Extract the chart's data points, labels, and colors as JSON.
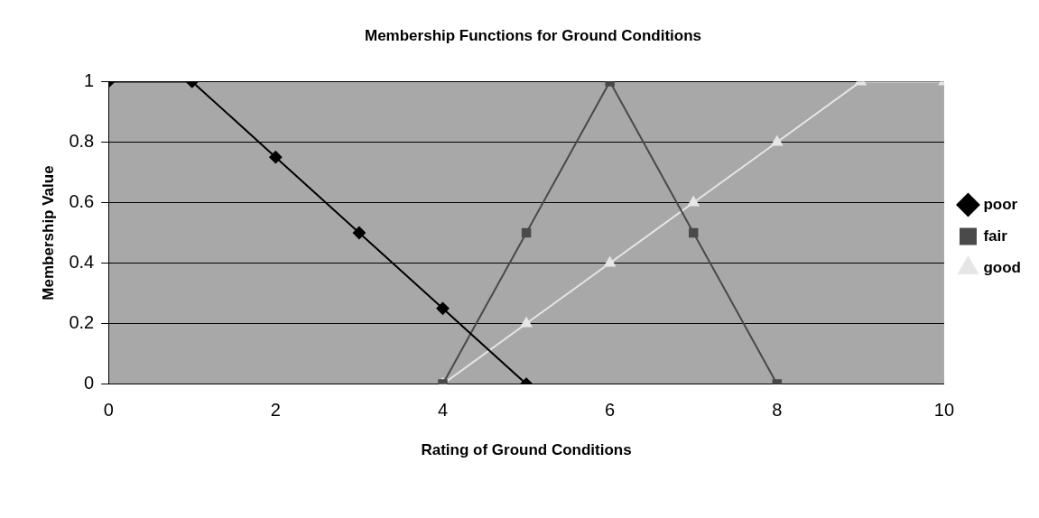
{
  "chart_data": {
    "type": "line",
    "title": "Membership Functions for Ground Conditions",
    "xlabel": "Rating of Ground Conditions",
    "ylabel": "Membership Value",
    "series": [
      {
        "name": "poor",
        "color": "#000000",
        "marker": "diamond",
        "x": [
          0,
          1,
          2,
          3,
          4,
          5
        ],
        "values": [
          1,
          1,
          0.75,
          0.5,
          0.25,
          0
        ]
      },
      {
        "name": "fair",
        "color": "#4a4a4a",
        "marker": "square",
        "x": [
          4,
          5,
          6,
          7,
          8
        ],
        "values": [
          0,
          0.5,
          1,
          0.5,
          0
        ]
      },
      {
        "name": "good",
        "color": "#e6e6e6",
        "marker": "triangle",
        "x": [
          4,
          5,
          6,
          7,
          8,
          9,
          10
        ],
        "values": [
          0,
          0.2,
          0.4,
          0.6,
          0.8,
          1,
          1
        ]
      }
    ],
    "xlim": [
      0,
      10
    ],
    "xticks": [
      0,
      2,
      4,
      6,
      8,
      10
    ],
    "ylim": [
      0,
      1
    ],
    "yticks": [
      0,
      0.2,
      0.4,
      0.6,
      0.8,
      1
    ],
    "grid": "y",
    "legend": "right"
  }
}
